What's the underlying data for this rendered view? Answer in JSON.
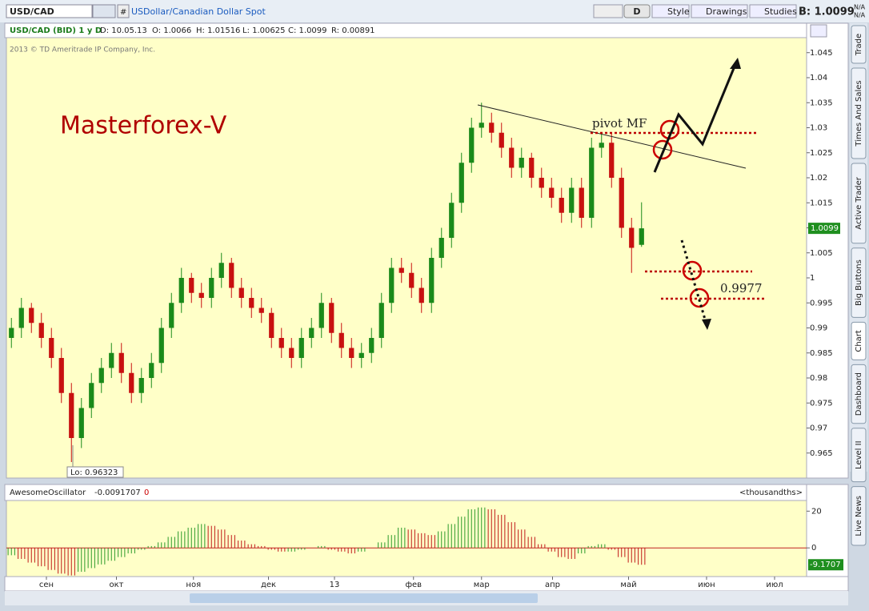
{
  "toolbar": {
    "symbol": "USD/CAD",
    "description": "USDollar/Canadian Dollar Spot",
    "period_button": "D",
    "style_button": "Style",
    "drawings_button": "Drawings",
    "studies_button": "Studies",
    "bid": "B: 1.0099",
    "na_top": "N/A",
    "na_bottom": "N/A"
  },
  "chart_header": {
    "symbol": "USD/CAD (BID) 1 y D",
    "date": "D: 10.05.13",
    "open": "O: 1.0066",
    "high": "H: 1.01516",
    "low": "L: 1.00625",
    "close": "C: 1.0099",
    "range": "R: 0.00891"
  },
  "copyright": "2013 © TD Ameritrade IP Company, Inc.",
  "low_label": "Lo: 0.96323",
  "study_header": {
    "name": "AwesomeOscillator",
    "value": "-0.0091707",
    "param": "0",
    "units": "<thousandths>"
  },
  "annotations": {
    "brand": "Masterforex-V",
    "pivot": "pivot MF",
    "level": "0.9977"
  },
  "side_tabs": [
    "Trade",
    "Times And Sales",
    "Active Trader",
    "Big Buttons",
    "Chart",
    "Dashboard",
    "Level II",
    "Live News"
  ],
  "chart_data": [
    {
      "type": "candlestick",
      "up_color": "#1a8a1a",
      "down_color": "#c81010",
      "xlim": [
        0,
        80
      ],
      "ylim": [
        0.96,
        1.048
      ],
      "xticks": [
        {
          "value": 4,
          "label": "сен"
        },
        {
          "value": 11,
          "label": "окт"
        },
        {
          "value": 18.7,
          "label": "ноя"
        },
        {
          "value": 26.2,
          "label": "дек"
        },
        {
          "value": 32.8,
          "label": "13"
        },
        {
          "value": 40.7,
          "label": "фев"
        },
        {
          "value": 47.5,
          "label": "мар"
        },
        {
          "value": 54.6,
          "label": "апр"
        },
        {
          "value": 62.2,
          "label": "май"
        },
        {
          "value": 70,
          "label": "июн"
        },
        {
          "value": 76.8,
          "label": "июл"
        }
      ],
      "yticks": [
        0.965,
        0.97,
        0.975,
        0.98,
        0.985,
        0.99,
        0.995,
        1,
        1.005,
        1.01,
        1.015,
        1.02,
        1.025,
        1.03,
        1.035,
        1.04,
        1.045
      ],
      "open": [
        0.988,
        0.99,
        0.994,
        0.991,
        0.988,
        0.984,
        0.977,
        0.968,
        0.974,
        0.979,
        0.982,
        0.985,
        0.981,
        0.977,
        0.98,
        0.983,
        0.99,
        0.995,
        1.0,
        0.997,
        0.996,
        1.0,
        1.003,
        0.998,
        0.996,
        0.994,
        0.993,
        0.988,
        0.986,
        0.984,
        0.988,
        0.99,
        0.995,
        0.989,
        0.986,
        0.984,
        0.985,
        0.988,
        0.995,
        1.002,
        1.001,
        0.998,
        0.995,
        1.004,
        1.008,
        1.015,
        1.023,
        1.03,
        1.031,
        1.029,
        1.026,
        1.022,
        1.024,
        1.02,
        1.018,
        1.016,
        1.013,
        1.018,
        1.012,
        1.026,
        1.027,
        1.02,
        1.01,
        1.0066
      ],
      "high": [
        0.992,
        0.996,
        0.995,
        0.993,
        0.99,
        0.986,
        0.979,
        0.976,
        0.981,
        0.984,
        0.987,
        0.987,
        0.983,
        0.982,
        0.985,
        0.992,
        0.997,
        1.002,
        1.001,
        0.999,
        1.002,
        1.005,
        1.004,
        1.0,
        0.998,
        0.996,
        0.994,
        0.99,
        0.988,
        0.99,
        0.992,
        0.997,
        0.996,
        0.991,
        0.988,
        0.987,
        0.99,
        0.997,
        1.004,
        1.004,
        1.003,
        1.0,
        1.006,
        1.01,
        1.017,
        1.025,
        1.032,
        1.035,
        1.033,
        1.031,
        1.028,
        1.026,
        1.025,
        1.022,
        1.02,
        1.018,
        1.02,
        1.02,
        1.028,
        1.029,
        1.029,
        1.022,
        1.012,
        1.0151
      ],
      "low": [
        0.986,
        0.988,
        0.989,
        0.986,
        0.982,
        0.975,
        0.9632,
        0.966,
        0.972,
        0.977,
        0.98,
        0.979,
        0.975,
        0.975,
        0.978,
        0.981,
        0.988,
        0.993,
        0.995,
        0.994,
        0.994,
        0.998,
        0.996,
        0.994,
        0.992,
        0.991,
        0.986,
        0.984,
        0.982,
        0.982,
        0.986,
        0.988,
        0.987,
        0.984,
        0.982,
        0.982,
        0.983,
        0.986,
        0.993,
        0.999,
        0.996,
        0.993,
        0.993,
        1.002,
        1.006,
        1.013,
        1.021,
        1.028,
        1.027,
        1.024,
        1.02,
        1.02,
        1.018,
        1.016,
        1.014,
        1.011,
        1.011,
        1.01,
        1.01,
        1.024,
        1.018,
        1.008,
        1.001,
        1.0062
      ],
      "close": [
        0.99,
        0.994,
        0.991,
        0.988,
        0.984,
        0.977,
        0.968,
        0.974,
        0.979,
        0.982,
        0.985,
        0.981,
        0.977,
        0.98,
        0.983,
        0.99,
        0.995,
        1.0,
        0.997,
        0.996,
        1.0,
        1.003,
        0.998,
        0.996,
        0.994,
        0.993,
        0.988,
        0.986,
        0.984,
        0.988,
        0.99,
        0.995,
        0.989,
        0.986,
        0.984,
        0.985,
        0.988,
        0.995,
        1.002,
        1.001,
        0.998,
        0.995,
        1.004,
        1.008,
        1.015,
        1.023,
        1.03,
        1.031,
        1.029,
        1.026,
        1.022,
        1.024,
        1.02,
        1.018,
        1.016,
        1.013,
        1.018,
        1.012,
        1.026,
        1.027,
        1.02,
        1.01,
        1.006,
        1.0099
      ]
    },
    {
      "type": "bar",
      "up_color": "#2a9a2a",
      "down_color": "#c01818",
      "xlim": [
        0,
        80
      ],
      "ylim": [
        -15.6,
        25.8
      ],
      "yticks": [
        0,
        20
      ],
      "values": [
        -4,
        -6,
        -8,
        -10,
        -12,
        -14,
        -15,
        -13,
        -11,
        -9,
        -7,
        -5,
        -3,
        -1,
        1,
        3,
        6,
        9,
        11,
        13,
        12,
        10,
        7,
        4,
        2,
        1,
        -1,
        -2,
        -2,
        -1,
        0,
        1,
        -1,
        -2,
        -3,
        -2,
        0,
        3,
        7,
        11,
        10,
        8,
        7,
        9,
        13,
        17,
        21,
        22,
        21,
        18,
        14,
        10,
        6,
        2,
        -2,
        -5,
        -6,
        -3,
        1,
        2,
        -1,
        -5,
        -8,
        -9.1707
      ]
    }
  ]
}
